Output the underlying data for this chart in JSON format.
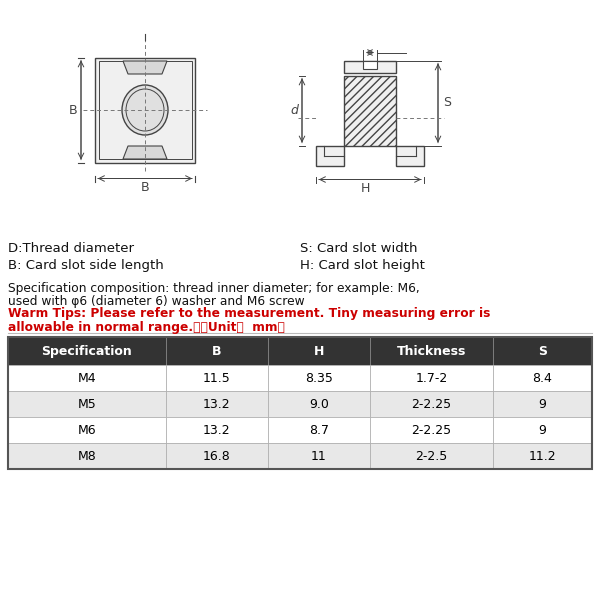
{
  "bg_color": "#ffffff",
  "legend_lines": [
    "D:Thread diameter",
    "B: Card slot side length"
  ],
  "legend_lines_right": [
    "S: Card slot width",
    "H: Card slot height"
  ],
  "spec_line1": "Specification composition: thread inner diameter; for example: M6,",
  "spec_line2": "used with φ6 (diameter 6) washer and M6 screw",
  "warm_line1": "Warm Tips: Please refer to the measurement. Tiny measuring error is",
  "warm_line2": "allowable in normal range.　（Unit：  mm）",
  "table_headers": [
    "Specification",
    "B",
    "H",
    "Thickness",
    "S"
  ],
  "table_data": [
    [
      "M4",
      "11.5",
      "8.35",
      "1.7-2",
      "8.4"
    ],
    [
      "M5",
      "13.2",
      "9.0",
      "2-2.25",
      "9"
    ],
    [
      "M6",
      "13.2",
      "8.7",
      "2-2.25",
      "9"
    ],
    [
      "M8",
      "16.8",
      "11",
      "2-2.5",
      "11.2"
    ]
  ],
  "header_bg": "#333333",
  "header_fg": "#ffffff",
  "row_bg_odd": "#ffffff",
  "row_bg_even": "#e8e8e8",
  "warm_tips_color": "#cc0000",
  "black": "#000000",
  "dim_color": "#444444"
}
